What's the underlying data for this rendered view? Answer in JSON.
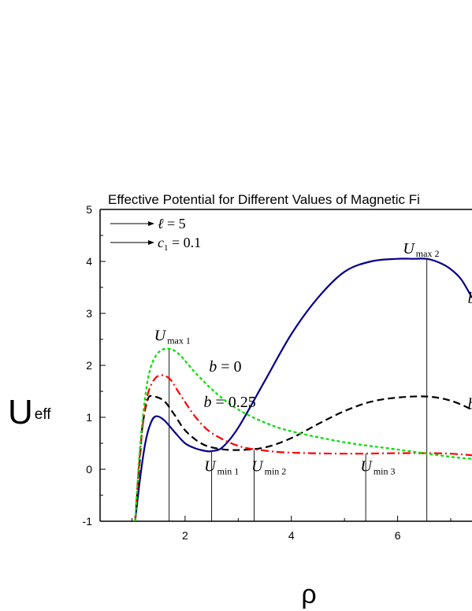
{
  "chart_data": {
    "type": "line",
    "title": "Effective Potential for Different Values of Magnetic Fi",
    "xlabel": "ρ",
    "ylabel_main": "U",
    "ylabel_sub": "eff",
    "xlim": [
      0.4,
      7.4
    ],
    "ylim": [
      -1,
      5
    ],
    "xticks": [
      2,
      4,
      6
    ],
    "yticks": [
      -1,
      0,
      1,
      2,
      3,
      4,
      5
    ],
    "grid": false,
    "colors": {
      "blue": "#00008b",
      "black": "#000000",
      "red": "#ff0000",
      "green": "#00e000"
    },
    "series": [
      {
        "color": "blue",
        "dash": "solid",
        "x": [
          1.06,
          1.15,
          1.25,
          1.35,
          1.45,
          1.6,
          1.8,
          2.0,
          2.2,
          2.4,
          2.5,
          2.7,
          3.0,
          3.5,
          4.0,
          4.5,
          5.0,
          5.5,
          6.0,
          6.3,
          6.55,
          6.8,
          7.0,
          7.2,
          7.4
        ],
        "y": [
          -1.0,
          -0.2,
          0.5,
          0.88,
          1.02,
          0.95,
          0.72,
          0.5,
          0.4,
          0.35,
          0.35,
          0.42,
          0.8,
          1.7,
          2.6,
          3.3,
          3.8,
          4.0,
          4.05,
          4.05,
          4.05,
          3.97,
          3.85,
          3.65,
          3.3
        ]
      },
      {
        "color": "black",
        "dash": "long",
        "x": [
          1.06,
          1.15,
          1.2,
          1.3,
          1.4,
          1.6,
          1.8,
          2.0,
          2.3,
          2.6,
          3.0,
          3.5,
          4.0,
          4.5,
          5.0,
          5.5,
          6.0,
          6.55,
          7.0,
          7.4
        ],
        "y": [
          -1.0,
          0.2,
          0.85,
          1.35,
          1.4,
          1.32,
          1.05,
          0.75,
          0.5,
          0.4,
          0.37,
          0.42,
          0.6,
          0.87,
          1.12,
          1.3,
          1.38,
          1.4,
          1.32,
          1.15
        ]
      },
      {
        "color": "red",
        "dash": "dashdot",
        "x": [
          1.06,
          1.15,
          1.25,
          1.35,
          1.5,
          1.7,
          1.9,
          2.2,
          2.5,
          3.0,
          3.5,
          4.0,
          5.0,
          6.0,
          6.55,
          7.0,
          7.4
        ],
        "y": [
          -1.0,
          0.3,
          1.2,
          1.6,
          1.8,
          1.75,
          1.45,
          1.0,
          0.7,
          0.45,
          0.36,
          0.32,
          0.3,
          0.31,
          0.31,
          0.3,
          0.27
        ]
      },
      {
        "color": "green",
        "dash": "short",
        "x": [
          1.06,
          1.15,
          1.25,
          1.35,
          1.5,
          1.7,
          1.9,
          2.2,
          2.6,
          3.0,
          3.5,
          4.0,
          5.0,
          6.0,
          7.0,
          7.4
        ],
        "y": [
          -1.0,
          0.4,
          1.4,
          1.95,
          2.25,
          2.32,
          2.2,
          1.85,
          1.45,
          1.15,
          0.9,
          0.73,
          0.52,
          0.38,
          0.24,
          0.2
        ]
      }
    ],
    "vlines": [
      {
        "x": 1.7,
        "ymax": 2.32
      },
      {
        "x": 2.5,
        "ymax": 0.35
      },
      {
        "x": 3.3,
        "ymax": 0.37
      },
      {
        "x": 5.4,
        "ymax": 0.3
      },
      {
        "x": 6.55,
        "ymax": 4.05
      }
    ],
    "legend": {
      "placement": "top-left",
      "items": [
        {
          "sym": "ℓ",
          "sub": "",
          "rest": " = 5"
        },
        {
          "sym": "c",
          "sub": "1",
          "rest": " = 0.1"
        }
      ]
    },
    "annotations": [
      {
        "sym": "U",
        "sub": "max 1",
        "x": 1.42,
        "y": 2.48
      },
      {
        "sym": "U",
        "sub": "max 2",
        "x": 6.1,
        "y": 4.15
      },
      {
        "sym": "U",
        "sub": "min 1",
        "x": 2.36,
        "y": -0.04
      },
      {
        "sym": "U",
        "sub": "min 2",
        "x": 3.25,
        "y": -0.04
      },
      {
        "sym": "U",
        "sub": "min 3",
        "x": 5.3,
        "y": -0.04
      },
      {
        "sym": "b",
        "sub": "",
        "rest": " = 0",
        "x": 2.45,
        "y": 1.88
      },
      {
        "sym": "b",
        "sub": "",
        "rest": " = 0.25",
        "x": 2.35,
        "y": 1.2
      },
      {
        "sym": "b",
        "sub": "",
        "rest": "",
        "x": 7.32,
        "y": 1.16
      },
      {
        "sym": "b",
        "sub": "",
        "rest": "",
        "x": 7.32,
        "y": 3.2
      }
    ]
  }
}
